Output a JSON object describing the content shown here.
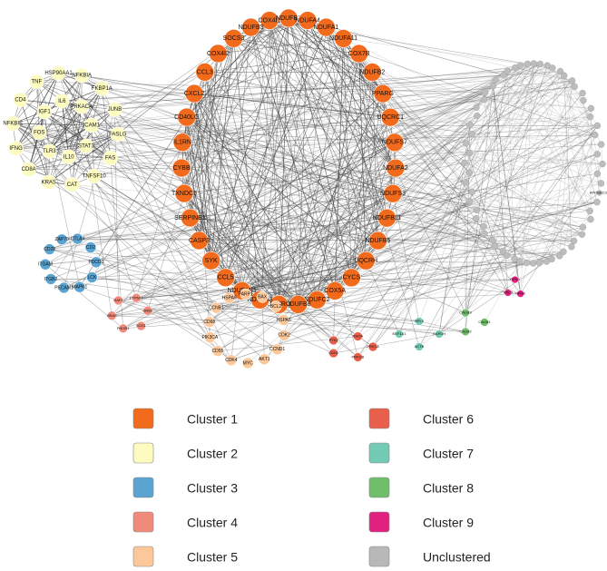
{
  "clusters": [
    {
      "label": "Cluster 1",
      "color": "#f26b1d",
      "nodes": [
        "COX4I1",
        "NDUFB1",
        "NDUFA4",
        "NDUFA1",
        "NDUFA11",
        "COX7B",
        "NDUFB2",
        "PPARG",
        "UQCRC1",
        "NDUFS7",
        "NDUFA2",
        "NDUFS3",
        "NDUFB11",
        "NDUFB5",
        "UQCRH",
        "CYCS",
        "COX5A",
        "NDUFC2",
        "NDUFB8",
        "UQCRQ",
        "NDUFA3",
        "NDUFAB1",
        "CCL5",
        "SYK",
        "CASP3",
        "SERPINE1",
        "TXNDC5",
        "CYBB",
        "IL1RN",
        "CD40LG",
        "CXCL2",
        "CCL3",
        "COX4I2",
        "SOCS3",
        "NDUFB3"
      ]
    },
    {
      "label": "Cluster 2",
      "color": "#fdfbc0",
      "nodes": [
        "HSP90AA1",
        "NFKBIA",
        "FKBP1A",
        "JUNB",
        "FASLG",
        "FAS",
        "TNFSF10",
        "CAT",
        "KRAS",
        "CD8A",
        "IFNG",
        "NFKBIE",
        "CD4",
        "TNF",
        "IL6",
        "PRKACA",
        "ICAM1",
        "STAT3",
        "IL10",
        "TLR3",
        "FOS",
        "IGF1"
      ]
    },
    {
      "label": "Cluster 3",
      "color": "#5ba3d0",
      "nodes": [
        "CTLA4",
        "CD2",
        "PDCD1",
        "LCK",
        "MAPK1",
        "PECAM1",
        "ITGB2",
        "ITGAM",
        "CD28",
        "ZAP70"
      ]
    },
    {
      "label": "Cluster 4",
      "color": "#f08a7a",
      "nodes": [
        "PTPN11",
        "GRB2",
        "SOS1",
        "PIK3R1",
        "HRAS",
        "RAF1"
      ]
    },
    {
      "label": "Cluster 5",
      "color": "#fcc89a",
      "nodes": [
        "PARP1",
        "BAX",
        "BCL2",
        "HSPA5",
        "CDK2",
        "CCND1",
        "AKT1",
        "MYC",
        "CDK4",
        "CD55",
        "PIK3CA",
        "CD68",
        "CCNB1",
        "HSPA8"
      ]
    },
    {
      "label": "Cluster 6",
      "color": "#e8604c",
      "nodes": [
        "PRKCA",
        "PRKCB",
        "CDH1",
        "PTK2",
        "RHOA"
      ]
    },
    {
      "label": "Cluster 7",
      "color": "#74cbb5",
      "nodes": [
        "GAPDH",
        "ACTB",
        "EEF1A1",
        "RPL3"
      ]
    },
    {
      "label": "Cluster 8",
      "color": "#6fbf6a",
      "nodes": [
        "CALM1",
        "CALM2",
        "CALM3"
      ]
    },
    {
      "label": "Cluster 9",
      "color": "#e0217e",
      "nodes": [
        "RPS3",
        "RPS6",
        "RPL5"
      ]
    },
    {
      "label": "Unclustered",
      "color": "#b8b8b8",
      "nodes": [
        "APOBEC3A"
      ]
    }
  ]
}
